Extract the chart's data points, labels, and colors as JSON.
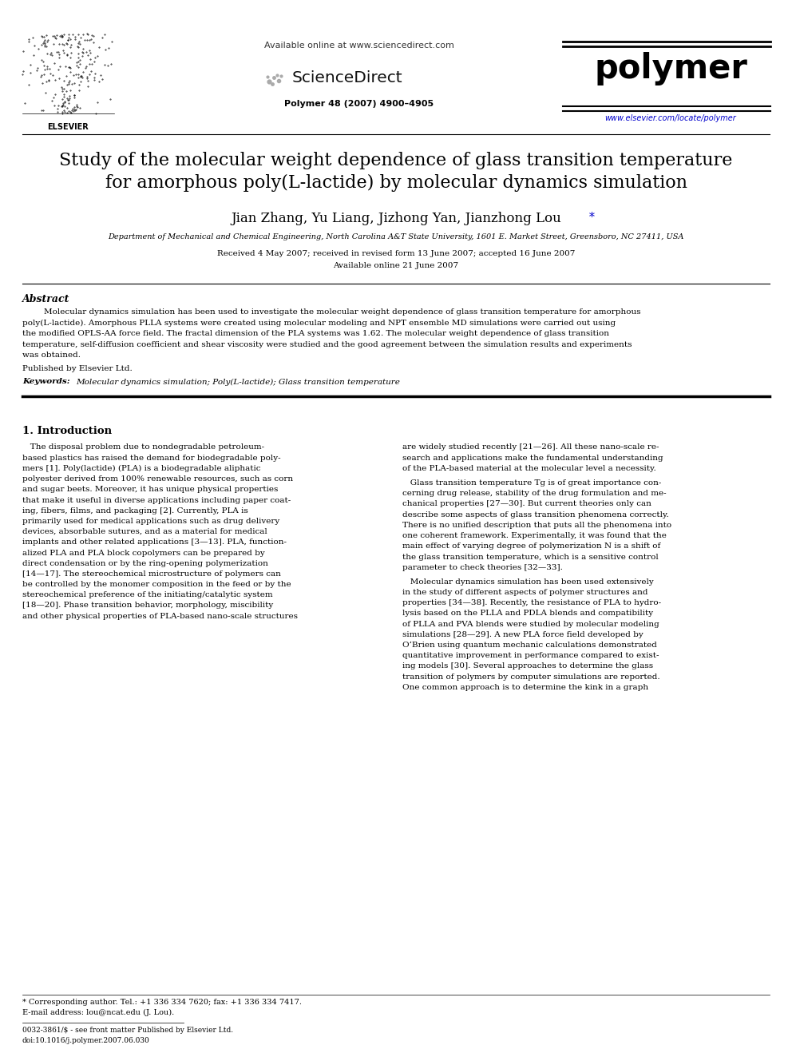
{
  "bg_color": "#ffffff",
  "available_online": "Available online at www.sciencedirect.com",
  "journal_name": "polymer",
  "journal_info": "Polymer 48 (2007) 4900–4905",
  "journal_url": "www.elsevier.com/locate/polymer",
  "title_line1": "Study of the molecular weight dependence of glass transition temperature",
  "title_line2": "for amorphous poly(L-lactide) by molecular dynamics simulation",
  "authors_main": "Jian Zhang, Yu Liang, Jizhong Yan, Jianzhong Lou",
  "affiliation": "Department of Mechanical and Chemical Engineering, North Carolina A&T State University, 1601 E. Market Street, Greensboro, NC 27411, USA",
  "received": "Received 4 May 2007; received in revised form 13 June 2007; accepted 16 June 2007",
  "available": "Available online 21 June 2007",
  "abstract_title": "Abstract",
  "abstract_lines": [
    "Molecular dynamics simulation has been used to investigate the molecular weight dependence of glass transition temperature for amorphous",
    "poly(L-lactide). Amorphous PLLA systems were created using molecular modeling and NPT ensemble MD simulations were carried out using",
    "the modified OPLS-AA force field. The fractal dimension of the PLA systems was 1.62. The molecular weight dependence of glass transition",
    "temperature, self-diffusion coefficient and shear viscosity were studied and the good agreement between the simulation results and experiments",
    "was obtained."
  ],
  "published_by": "Published by Elsevier Ltd.",
  "keywords_label": "Keywords: ",
  "keywords_text": "Molecular dynamics simulation; Poly(L-lactide); Glass transition temperature",
  "section1_title": "1. Introduction",
  "col1_lines": [
    "   The disposal problem due to nondegradable petroleum-",
    "based plastics has raised the demand for biodegradable poly-",
    "mers [1]. Poly(lactide) (PLA) is a biodegradable aliphatic",
    "polyester derived from 100% renewable resources, such as corn",
    "and sugar beets. Moreover, it has unique physical properties",
    "that make it useful in diverse applications including paper coat-",
    "ing, fibers, films, and packaging [2]. Currently, PLA is",
    "primarily used for medical applications such as drug delivery",
    "devices, absorbable sutures, and as a material for medical",
    "implants and other related applications [3—13]. PLA, function-",
    "alized PLA and PLA block copolymers can be prepared by",
    "direct condensation or by the ring-opening polymerization",
    "[14—17]. The stereochemical microstructure of polymers can",
    "be controlled by the monomer composition in the feed or by the",
    "stereochemical preference of the initiating/catalytic system",
    "[18—20]. Phase transition behavior, morphology, miscibility",
    "and other physical properties of PLA-based nano-scale structures"
  ],
  "col2_block1_lines": [
    "are widely studied recently [21—26]. All these nano-scale re-",
    "search and applications make the fundamental understanding",
    "of the PLA-based material at the molecular level a necessity."
  ],
  "col2_block2_lines": [
    "   Glass transition temperature Tg is of great importance con-",
    "cerning drug release, stability of the drug formulation and me-",
    "chanical properties [27—30]. But current theories only can",
    "describe some aspects of glass transition phenomena correctly.",
    "There is no unified description that puts all the phenomena into",
    "one coherent framework. Experimentally, it was found that the",
    "main effect of varying degree of polymerization N is a shift of",
    "the glass transition temperature, which is a sensitive control",
    "parameter to check theories [32—33]."
  ],
  "col2_block3_lines": [
    "   Molecular dynamics simulation has been used extensively",
    "in the study of different aspects of polymer structures and",
    "properties [34—38]. Recently, the resistance of PLA to hydro-",
    "lysis based on the PLLA and PDLA blends and compatibility",
    "of PLLA and PVA blends were studied by molecular modeling",
    "simulations [28—29]. A new PLA force field developed by",
    "O’Brien using quantum mechanic calculations demonstrated",
    "quantitative improvement in performance compared to exist-",
    "ing models [30]. Several approaches to determine the glass",
    "transition of polymers by computer simulations are reported.",
    "One common approach is to determine the kink in a graph"
  ],
  "footnote_line": "* Corresponding author. Tel.: +1 336 334 7620; fax: +1 336 334 7417.",
  "footnote_email": "E-mail address: lou@ncat.edu (J. Lou).",
  "issn_line": "0032-3861/$ - see front matter Published by Elsevier Ltd.",
  "doi_line": "doi:10.1016/j.polymer.2007.06.030",
  "link_color": "#0000cc"
}
